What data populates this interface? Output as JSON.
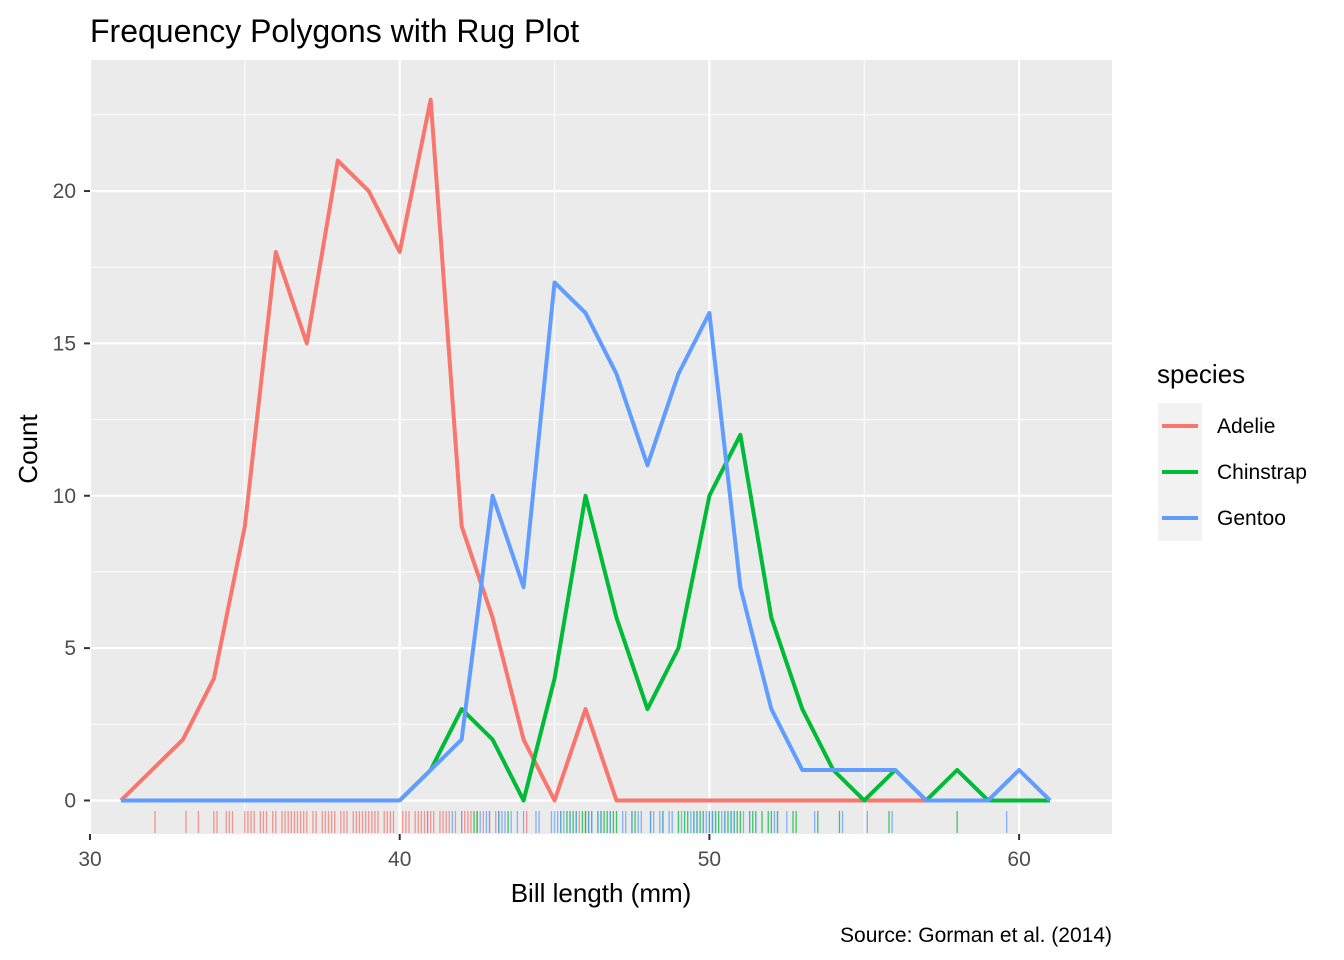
{
  "chart_data": {
    "type": "line",
    "title": "Frequency Polygons with Rug Plot",
    "xlabel": "Bill length (mm)",
    "ylabel": "Count",
    "caption": "Source: Gorman et al. (2014)",
    "xlim": [
      30,
      63
    ],
    "ylim": [
      -1.1,
      24.3
    ],
    "x_ticks": [
      30,
      40,
      50,
      60
    ],
    "x_tick_labels": [
      "30",
      "40",
      "50",
      "60"
    ],
    "y_ticks": [
      0,
      5,
      10,
      15,
      20
    ],
    "y_tick_labels": [
      "0",
      "5",
      "10",
      "15",
      "20"
    ],
    "grid": true,
    "legend": {
      "title": "species",
      "position": "right"
    },
    "x": [
      31,
      32,
      33,
      34,
      35,
      36,
      37,
      38,
      39,
      40,
      41,
      42,
      43,
      44,
      45,
      46,
      47,
      48,
      49,
      50,
      51,
      52,
      53,
      54,
      55,
      56,
      57,
      58,
      59,
      60,
      61
    ],
    "series": [
      {
        "name": "Adelie",
        "color": "#F8766D",
        "values": [
          0,
          1,
          2,
          4,
          9,
          18,
          15,
          21,
          20,
          18,
          23,
          9,
          6,
          2,
          0,
          3,
          0,
          0,
          0,
          0,
          0,
          0,
          0,
          0,
          0,
          0,
          0,
          0,
          0,
          0,
          0
        ]
      },
      {
        "name": "Chinstrap",
        "color": "#00BA38",
        "values": [
          0,
          0,
          0,
          0,
          0,
          0,
          0,
          0,
          0,
          0,
          1,
          3,
          2,
          0,
          4,
          10,
          6,
          3,
          5,
          10,
          12,
          6,
          3,
          1,
          0,
          1,
          0,
          1,
          0,
          0,
          0
        ]
      },
      {
        "name": "Gentoo",
        "color": "#619CFF",
        "values": [
          0,
          0,
          0,
          0,
          0,
          0,
          0,
          0,
          0,
          0,
          1,
          2,
          10,
          7,
          17,
          16,
          14,
          11,
          14,
          16,
          7,
          3,
          1,
          1,
          1,
          1,
          0,
          0,
          0,
          1,
          0
        ]
      }
    ],
    "rug": {
      "Adelie": [
        32.1,
        33.1,
        33.5,
        34.0,
        34.1,
        34.4,
        34.5,
        34.6,
        35.0,
        35.1,
        35.2,
        35.3,
        35.5,
        35.6,
        35.7,
        35.9,
        36.0,
        36.2,
        36.3,
        36.4,
        36.5,
        36.6,
        36.7,
        36.8,
        36.9,
        37.0,
        37.2,
        37.3,
        37.5,
        37.6,
        37.7,
        37.8,
        37.9,
        38.1,
        38.2,
        38.3,
        38.5,
        38.6,
        38.7,
        38.8,
        38.9,
        39.0,
        39.1,
        39.2,
        39.3,
        39.5,
        39.6,
        39.7,
        39.8,
        40.1,
        40.2,
        40.3,
        40.5,
        40.6,
        40.7,
        40.8,
        40.9,
        41.0,
        41.1,
        41.3,
        41.4,
        41.5,
        41.6,
        41.8,
        42.0,
        42.1,
        42.2,
        42.3,
        42.5,
        42.7,
        42.9,
        43.1,
        43.2,
        44.1,
        45.8,
        46.0
      ],
      "Chinstrap": [
        42.4,
        42.5,
        43.2,
        43.5,
        45.2,
        45.4,
        45.5,
        45.6,
        45.7,
        45.9,
        46.0,
        46.1,
        46.2,
        46.4,
        46.5,
        46.6,
        46.7,
        46.8,
        46.9,
        47.0,
        47.5,
        47.6,
        48.1,
        48.5,
        49.0,
        49.2,
        49.3,
        49.5,
        49.6,
        49.7,
        49.8,
        50.0,
        50.1,
        50.2,
        50.3,
        50.5,
        50.6,
        50.7,
        50.8,
        50.9,
        51.0,
        51.3,
        51.4,
        51.5,
        51.7,
        51.9,
        52.0,
        52.2,
        52.7,
        52.8,
        53.5,
        54.2,
        55.8,
        58.0
      ],
      "Gentoo": [
        40.9,
        41.7,
        42.0,
        42.6,
        42.8,
        42.9,
        43.2,
        43.3,
        43.4,
        43.6,
        43.8,
        44.0,
        44.4,
        44.5,
        44.9,
        45.0,
        45.1,
        45.2,
        45.3,
        45.5,
        45.7,
        46.1,
        46.2,
        46.4,
        46.5,
        46.8,
        47.2,
        47.3,
        47.5,
        47.7,
        47.8,
        48.1,
        48.2,
        48.4,
        48.5,
        48.7,
        48.8,
        49.1,
        49.4,
        49.5,
        49.6,
        49.8,
        49.9,
        50.0,
        50.1,
        50.2,
        50.4,
        50.5,
        50.7,
        50.8,
        51.1,
        51.3,
        51.5,
        52.1,
        52.2,
        52.5,
        53.4,
        54.3,
        55.1,
        55.9,
        59.6
      ]
    }
  }
}
